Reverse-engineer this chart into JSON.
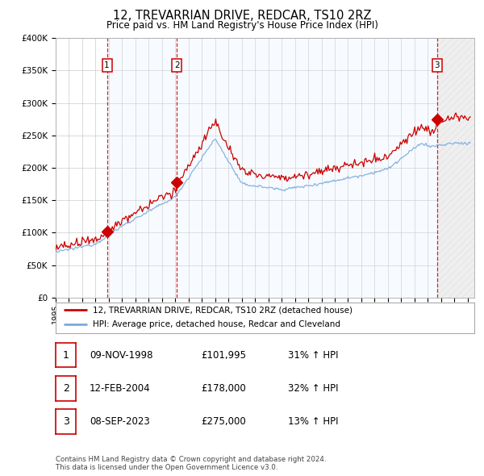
{
  "title": "12, TREVARRIAN DRIVE, REDCAR, TS10 2RZ",
  "subtitle": "Price paid vs. HM Land Registry's House Price Index (HPI)",
  "ylabel_ticks": [
    "£0",
    "£50K",
    "£100K",
    "£150K",
    "£200K",
    "£250K",
    "£300K",
    "£350K",
    "£400K"
  ],
  "ylim": [
    0,
    400000
  ],
  "xlim_start": 1995.0,
  "xlim_end": 2026.5,
  "sale_dates": [
    1998.86,
    2004.12,
    2023.69
  ],
  "sale_prices": [
    101995,
    178000,
    275000
  ],
  "sale_labels": [
    "1",
    "2",
    "3"
  ],
  "legend_line1": "12, TREVARRIAN DRIVE, REDCAR, TS10 2RZ (detached house)",
  "legend_line2": "HPI: Average price, detached house, Redcar and Cleveland",
  "table_data": [
    [
      "1",
      "09-NOV-1998",
      "£101,995",
      "31% ↑ HPI"
    ],
    [
      "2",
      "12-FEB-2004",
      "£178,000",
      "32% ↑ HPI"
    ],
    [
      "3",
      "08-SEP-2023",
      "£275,000",
      "13% ↑ HPI"
    ]
  ],
  "footer1": "Contains HM Land Registry data © Crown copyright and database right 2024.",
  "footer2": "This data is licensed under the Open Government Licence v3.0.",
  "hpi_color": "#7aaadd",
  "price_color": "#cc0000",
  "sale_marker_color": "#cc0000",
  "vline_color": "#cc0000",
  "shade_color": "#ddeeff",
  "background_color": "#ffffff",
  "grid_color": "#cccccc"
}
